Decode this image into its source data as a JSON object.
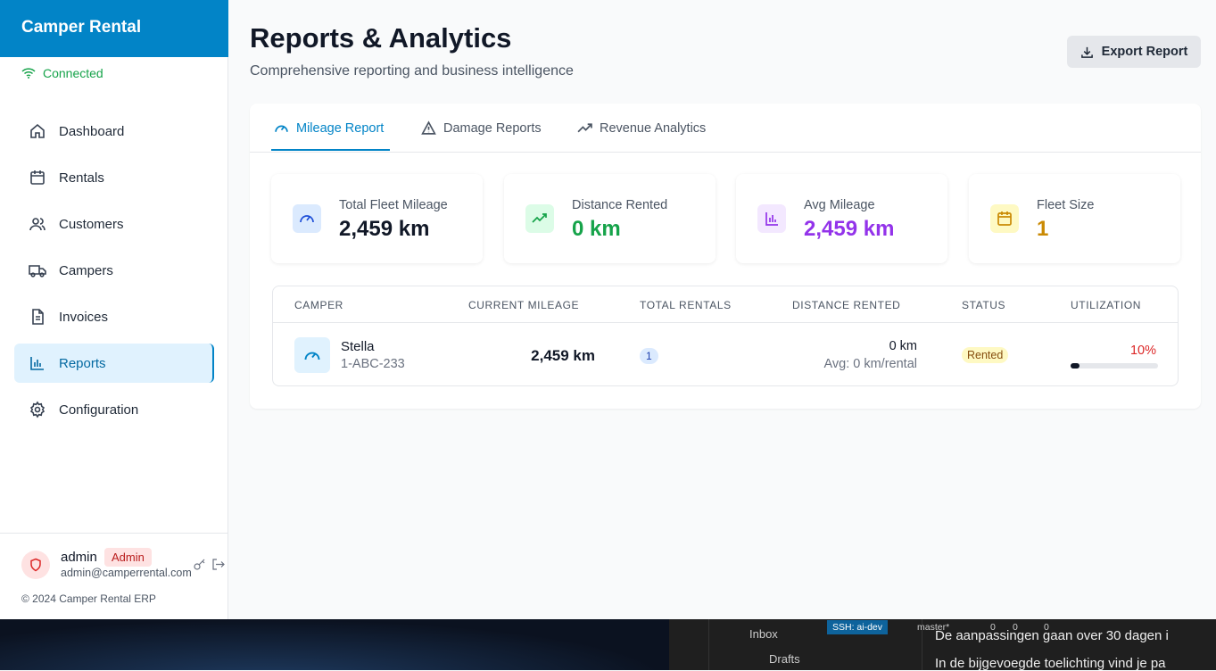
{
  "sidebar": {
    "brand": "Camper Rental",
    "status": "Connected",
    "nav": [
      "Dashboard",
      "Rentals",
      "Customers",
      "Campers",
      "Invoices",
      "Reports",
      "Configuration"
    ],
    "user": {
      "name": "admin",
      "role": "Admin",
      "email": "admin@camperrental.com"
    },
    "footer": "© 2024 Camper Rental ERP"
  },
  "header": {
    "title": "Reports & Analytics",
    "subtitle": "Comprehensive reporting and business intelligence",
    "export": "Export Report"
  },
  "tabs": [
    "Mileage Report",
    "Damage Reports",
    "Revenue Analytics"
  ],
  "stats": [
    {
      "label": "Total Fleet Mileage",
      "value": "2,459 km"
    },
    {
      "label": "Distance Rented",
      "value": "0 km"
    },
    {
      "label": "Avg Mileage",
      "value": "2,459 km"
    },
    {
      "label": "Fleet Size",
      "value": "1"
    }
  ],
  "table": {
    "columns": [
      "CAMPER",
      "CURRENT MILEAGE",
      "TOTAL RENTALS",
      "DISTANCE RENTED",
      "STATUS",
      "UTILIZATION"
    ],
    "rows": [
      {
        "camper": "Stella",
        "plate": "1-ABC-233",
        "mileage": "2,459 km",
        "rentals": "1",
        "distance": "0 km",
        "avg": "Avg: 0 km/rental",
        "status": "Rented",
        "utilization": {
          "value": 10,
          "label": "10%"
        }
      }
    ]
  },
  "taskbar": {
    "items": [
      "Inbox",
      "Drafts"
    ],
    "ssh": "SSH: ai-dev",
    "branch": "master*",
    "errors": "0",
    "warnings": "0",
    "ports": "0",
    "lines": [
      "De aanpassingen gaan over 30 dagen i",
      "In de bijgevoegde toelichting vind je pa"
    ]
  }
}
